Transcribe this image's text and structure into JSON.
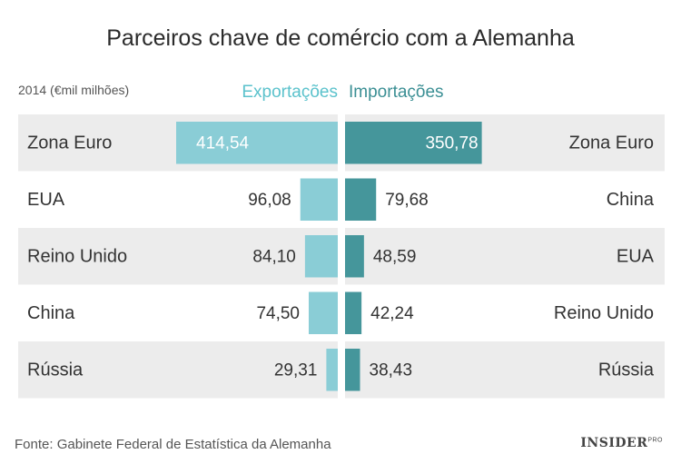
{
  "title": "Parceiros chave de comércio com a Alemanha",
  "unit_note": "2014 (€mil milhões)",
  "source": "Fonte: Gabinete Federal de Estatística da Alemanha",
  "logo": {
    "main": "INSIDER",
    "sup": "PRO"
  },
  "colors": {
    "exports": "#8acdd6",
    "imports": "#45969b",
    "row_shade": "#ececec"
  },
  "chart_data": {
    "type": "bar",
    "layout": "back-to-back horizontal",
    "series": [
      {
        "name": "Exportações",
        "categories": [
          "Zona Euro",
          "EUA",
          "Reino Unido",
          "China",
          "Rússia"
        ],
        "values": [
          414.54,
          96.08,
          84.1,
          74.5,
          29.31
        ],
        "labels": [
          "414,54",
          "96,08",
          "84,10",
          "74,50",
          "29,31"
        ]
      },
      {
        "name": "Importações",
        "categories": [
          "Zona Euro",
          "China",
          "EUA",
          "Reino Unido",
          "Rússia"
        ],
        "values": [
          350.78,
          79.68,
          48.59,
          42.24,
          38.43
        ],
        "labels": [
          "350,78",
          "79,68",
          "48,59",
          "42,24",
          "38,43"
        ]
      }
    ]
  }
}
